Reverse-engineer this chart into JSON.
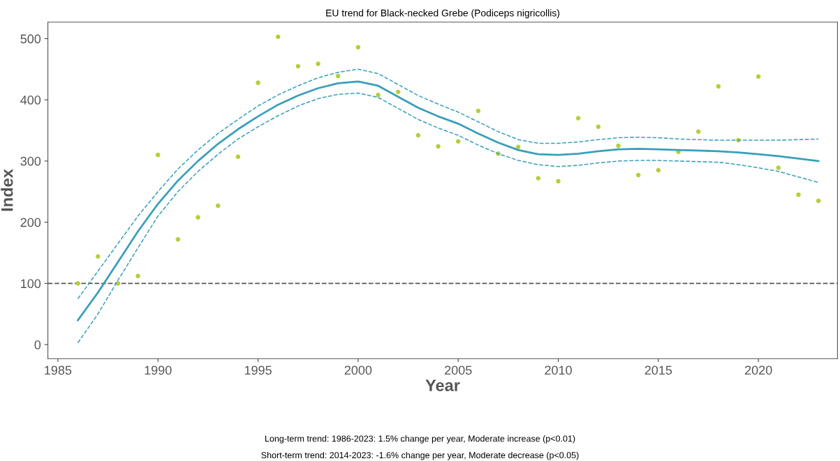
{
  "chart_data": {
    "type": "scatter",
    "title": "EU trend for Black-necked Grebe (Podiceps nigricollis)",
    "xlabel": "Year",
    "ylabel": "Index",
    "x": [
      1986,
      1987,
      1988,
      1989,
      1990,
      1991,
      1992,
      1993,
      1994,
      1995,
      1996,
      1997,
      1998,
      1999,
      2000,
      2001,
      2002,
      2003,
      2004,
      2005,
      2006,
      2007,
      2008,
      2009,
      2010,
      2011,
      2012,
      2013,
      2014,
      2015,
      2016,
      2017,
      2018,
      2019,
      2020,
      2021,
      2022,
      2023
    ],
    "series": [
      {
        "color": "#b5cf3a",
        "marker": "circle",
        "values": [
          100,
          144,
          100,
          112,
          310,
          172,
          208,
          227,
          307,
          428,
          503,
          455,
          459,
          439,
          486,
          408,
          413,
          342,
          324,
          332,
          382,
          312,
          323,
          272,
          267,
          370,
          356,
          325,
          277,
          285,
          315,
          348,
          422,
          334,
          438,
          289,
          245,
          235
        ]
      },
      {
        "type": "line",
        "color": "#3a9fba",
        "line_style": "solid",
        "values": [
          40,
          85,
          135,
          185,
          230,
          268,
          300,
          328,
          352,
          373,
          392,
          407,
          419,
          427,
          430,
          423,
          405,
          387,
          373,
          361,
          345,
          330,
          318,
          311,
          310,
          312,
          316,
          319,
          320,
          319,
          318,
          317,
          316,
          314,
          311,
          308,
          304,
          300
        ]
      },
      {
        "type": "line",
        "color": "#3a9fba",
        "line_style": "dashed",
        "values": [
          3,
          50,
          105,
          158,
          210,
          250,
          283,
          311,
          336,
          356,
          374,
          390,
          402,
          409,
          411,
          404,
          386,
          368,
          354,
          342,
          326,
          312,
          301,
          294,
          291,
          293,
          297,
          300,
          301,
          301,
          300,
          299,
          298,
          294,
          289,
          283,
          274,
          265
        ]
      },
      {
        "type": "line",
        "color": "#3a9fba",
        "line_style": "dashed",
        "values": [
          75,
          120,
          165,
          210,
          250,
          287,
          318,
          345,
          368,
          390,
          408,
          423,
          436,
          445,
          450,
          443,
          425,
          407,
          393,
          380,
          364,
          348,
          335,
          329,
          329,
          331,
          335,
          338,
          339,
          338,
          336,
          335,
          334,
          334,
          334,
          334,
          335,
          336
        ]
      }
    ],
    "xlim": [
      1984.5,
      2023.95
    ],
    "xticks": [
      1985,
      1990,
      1995,
      2000,
      2005,
      2010,
      2015,
      2020
    ],
    "ylim": [
      -23,
      527
    ],
    "yticks": [
      0,
      100,
      200,
      300,
      400,
      500
    ],
    "ref_lines": [
      {
        "axis": "y",
        "value": 100,
        "color": "#555555",
        "line_style": "dashed"
      }
    ],
    "annotations": [
      "Long-term trend: 1986-2023: 1.5% change per year, Moderate increase (p<0.01)",
      "Short-term trend: 2014-2023: -1.6% change per year, Moderate decrease (p<0.05)"
    ]
  }
}
